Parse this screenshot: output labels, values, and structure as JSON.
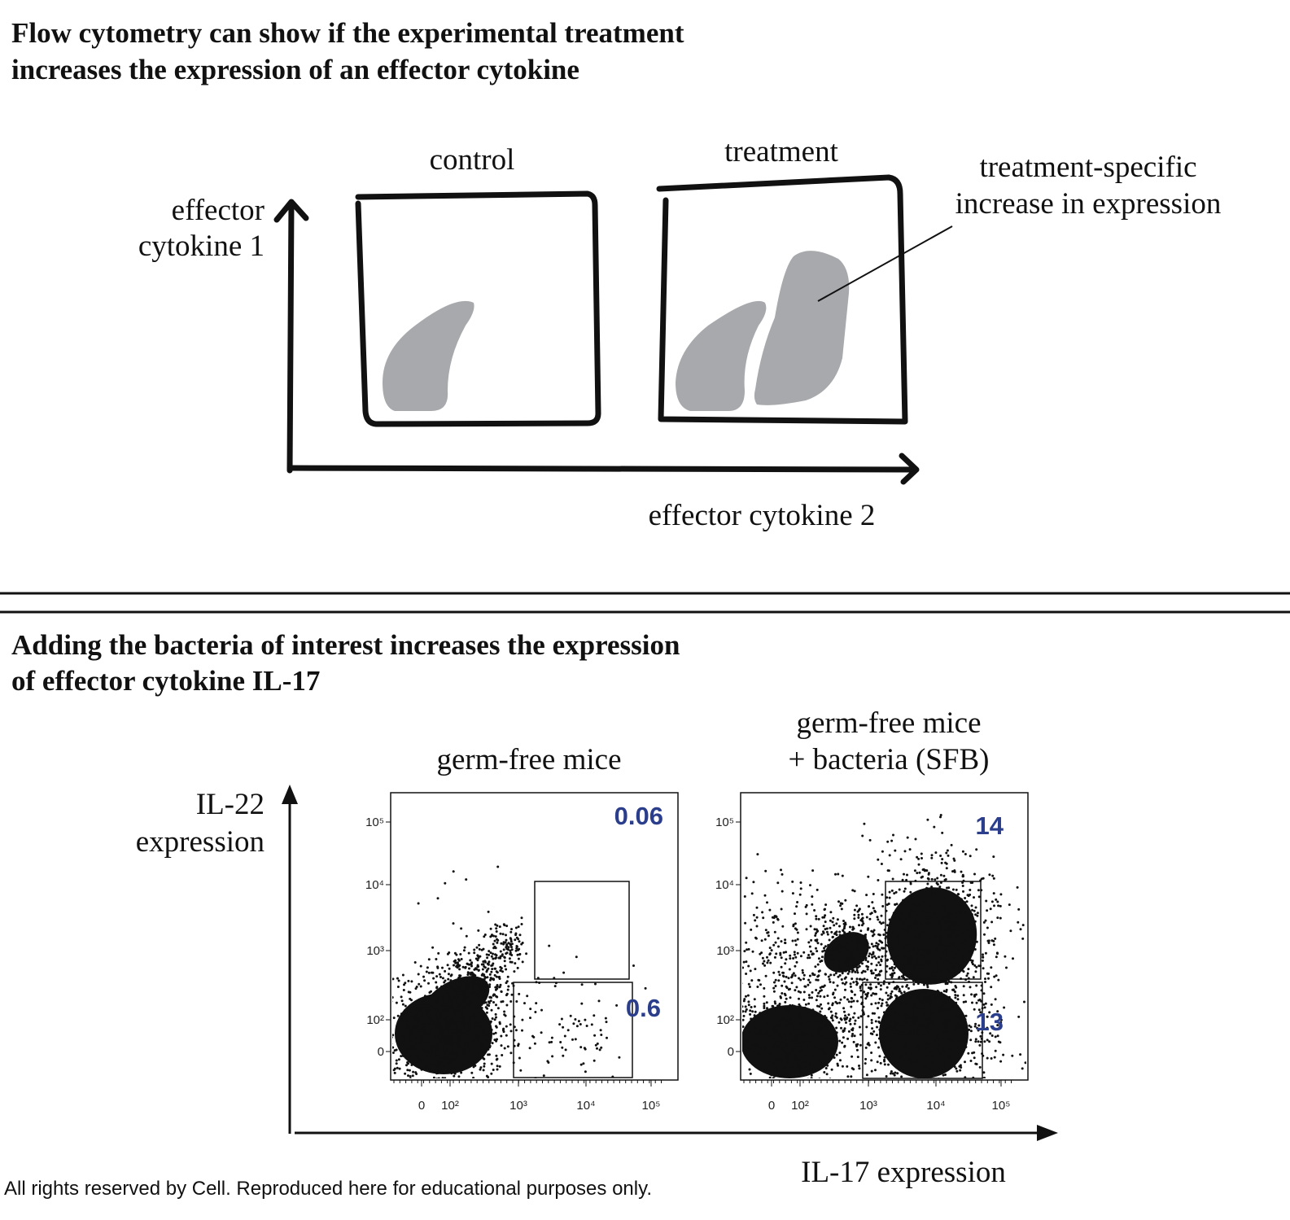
{
  "top": {
    "title": [
      "Flow cytometry can show if the experimental treatment",
      "increases the expression of an effector cytokine"
    ],
    "y_axis_label": [
      "effector",
      "cytokine 1"
    ],
    "x_axis_label": "effector cytokine 2",
    "panels": [
      {
        "label": "control"
      },
      {
        "label": "treatment"
      }
    ],
    "annotation": [
      "treatment-specific",
      "increase in expression"
    ]
  },
  "bottom": {
    "title": [
      "Adding the bacteria of interest increases the expression",
      "of effector cytokine IL-17"
    ],
    "y_axis_label": [
      "IL-22",
      "expression"
    ],
    "x_axis_label": "IL-17 expression",
    "y_ticks": [
      "10⁵",
      "10⁴",
      "10³",
      "10²",
      "0"
    ],
    "x_ticks": [
      "0",
      "10²",
      "10³",
      "10⁴",
      "10⁵"
    ],
    "panels": [
      {
        "label": [
          "germ-free mice"
        ],
        "gates": [
          "0.06",
          "0.6"
        ]
      },
      {
        "label": [
          "germ-free mice",
          "+ bacteria (SFB)"
        ],
        "gates": [
          "14",
          "13"
        ]
      }
    ]
  },
  "footer": "All rights reserved by Cell.  Reproduced here for educational purposes only."
}
